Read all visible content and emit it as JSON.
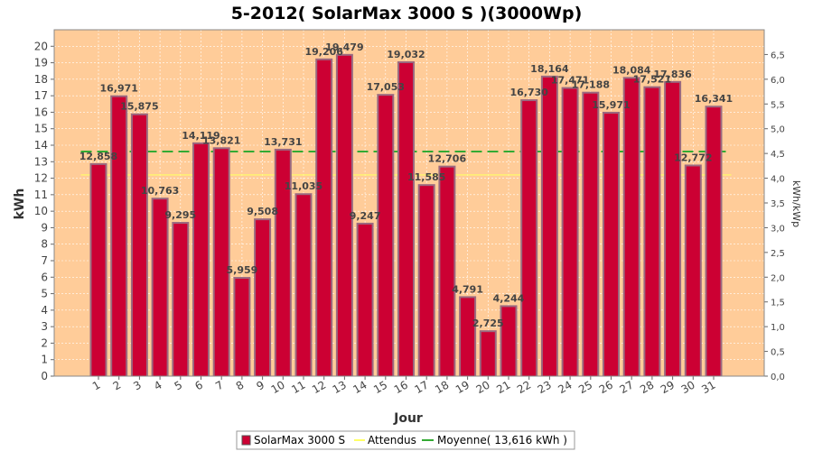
{
  "chart_data": {
    "type": "bar",
    "title": "5-2012( SolarMax 3000 S )(3000Wp)",
    "xlabel": "Jour",
    "ylabel": "kWh",
    "ylabel_right": "kWh/kWp",
    "ylim": [
      0,
      21
    ],
    "ylim_right": [
      0,
      7
    ],
    "yticks": [
      "0",
      "1",
      "2",
      "3",
      "4",
      "5",
      "6",
      "7",
      "8",
      "9",
      "10",
      "11",
      "12",
      "13",
      "14",
      "15",
      "16",
      "17",
      "18",
      "19",
      "20"
    ],
    "yticks_right": [
      "0,0",
      "0,5",
      "1,0",
      "1,5",
      "2,0",
      "2,5",
      "3,0",
      "3,5",
      "4,0",
      "4,5",
      "5,0",
      "5,5",
      "6,0",
      "6,5"
    ],
    "categories": [
      "1",
      "2",
      "3",
      "4",
      "5",
      "6",
      "7",
      "8",
      "9",
      "10",
      "11",
      "12",
      "13",
      "14",
      "15",
      "16",
      "17",
      "18",
      "19",
      "20",
      "21",
      "22",
      "23",
      "24",
      "25",
      "26",
      "27",
      "28",
      "29",
      "30",
      "31"
    ],
    "series": [
      {
        "name": "SolarMax 3000 S",
        "color": "#cc0033",
        "values": [
          12.858,
          16.971,
          15.875,
          10.763,
          9.295,
          14.119,
          13.821,
          5.959,
          9.508,
          13.731,
          11.035,
          19.206,
          19.479,
          9.247,
          17.053,
          19.032,
          11.585,
          12.706,
          4.791,
          2.725,
          4.244,
          16.73,
          18.164,
          17.471,
          17.188,
          15.971,
          18.084,
          17.521,
          17.836,
          12.772,
          16.341
        ],
        "labels": [
          "12,858",
          "16,971",
          "15,875",
          "10,763",
          "9,295",
          "14,119",
          "13,821",
          "5,959",
          "9,508",
          "13,731",
          "11,035",
          "19,206",
          "19,479",
          "9,247",
          "17,053",
          "19,032",
          "11,585",
          "12,706",
          "4,791",
          "2,725",
          "4,244",
          "16,730",
          "18,164",
          "17,471",
          "17,188",
          "15,971",
          "18,084",
          "17,521",
          "17,836",
          "12,772",
          "16,341"
        ]
      }
    ],
    "reference_lines": [
      {
        "name": "Attendus",
        "value": 12.2,
        "color": "#ffff66",
        "style": "solid"
      },
      {
        "name": "Moyenne( 13,616 kWh )",
        "value": 13.616,
        "color": "#33aa33",
        "style": "dashed"
      }
    ],
    "colors": {
      "plot_background": "#ffcc99",
      "grid": "#ffffff",
      "bar_fill": "#cc0033",
      "bar_edge": "#9a6a80"
    },
    "grid": true,
    "legend_position": "bottom-center"
  }
}
